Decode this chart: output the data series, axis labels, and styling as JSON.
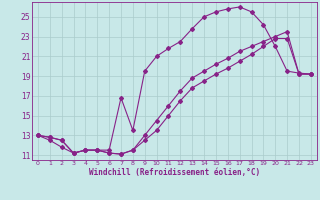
{
  "xlabel": "Windchill (Refroidissement éolien,°C)",
  "bg_color": "#c8e8e8",
  "grid_color": "#aacccc",
  "line_color": "#882288",
  "xlim": [
    -0.5,
    23.5
  ],
  "ylim": [
    10.5,
    26.5
  ],
  "xticks": [
    0,
    1,
    2,
    3,
    4,
    5,
    6,
    7,
    8,
    9,
    10,
    11,
    12,
    13,
    14,
    15,
    16,
    17,
    18,
    19,
    20,
    21,
    22,
    23
  ],
  "yticks": [
    11,
    13,
    15,
    17,
    19,
    21,
    23,
    25
  ],
  "line1_x": [
    0,
    1,
    2,
    3,
    4,
    5,
    6,
    7,
    8,
    9,
    10,
    11,
    12,
    13,
    14,
    15,
    16,
    17,
    18,
    19,
    20,
    21,
    22,
    23
  ],
  "line1_y": [
    13.0,
    12.8,
    12.5,
    11.2,
    11.5,
    11.5,
    11.2,
    11.1,
    11.5,
    13.0,
    14.5,
    16.0,
    17.5,
    18.8,
    19.5,
    20.2,
    20.8,
    21.5,
    22.0,
    22.5,
    23.0,
    23.5,
    19.2,
    19.2
  ],
  "line2_x": [
    0,
    1,
    2,
    3,
    4,
    5,
    6,
    7,
    8,
    9,
    10,
    11,
    12,
    13,
    14,
    15,
    16,
    17,
    18,
    19,
    20,
    21,
    22,
    23
  ],
  "line2_y": [
    13.0,
    12.8,
    12.5,
    11.2,
    11.5,
    11.5,
    11.5,
    16.8,
    13.5,
    19.5,
    21.0,
    21.8,
    22.5,
    23.8,
    25.0,
    25.5,
    25.8,
    26.0,
    25.5,
    24.2,
    22.0,
    19.5,
    19.3,
    19.2
  ],
  "line3_x": [
    0,
    1,
    2,
    3,
    4,
    5,
    6,
    7,
    8,
    9,
    10,
    11,
    12,
    13,
    14,
    15,
    16,
    17,
    18,
    19,
    20,
    21,
    22,
    23
  ],
  "line3_y": [
    13.0,
    12.5,
    11.8,
    11.2,
    11.5,
    11.5,
    11.2,
    11.1,
    11.5,
    12.5,
    13.5,
    15.0,
    16.5,
    17.8,
    18.5,
    19.2,
    19.8,
    20.5,
    21.2,
    22.0,
    22.8,
    22.8,
    19.2,
    19.2
  ]
}
